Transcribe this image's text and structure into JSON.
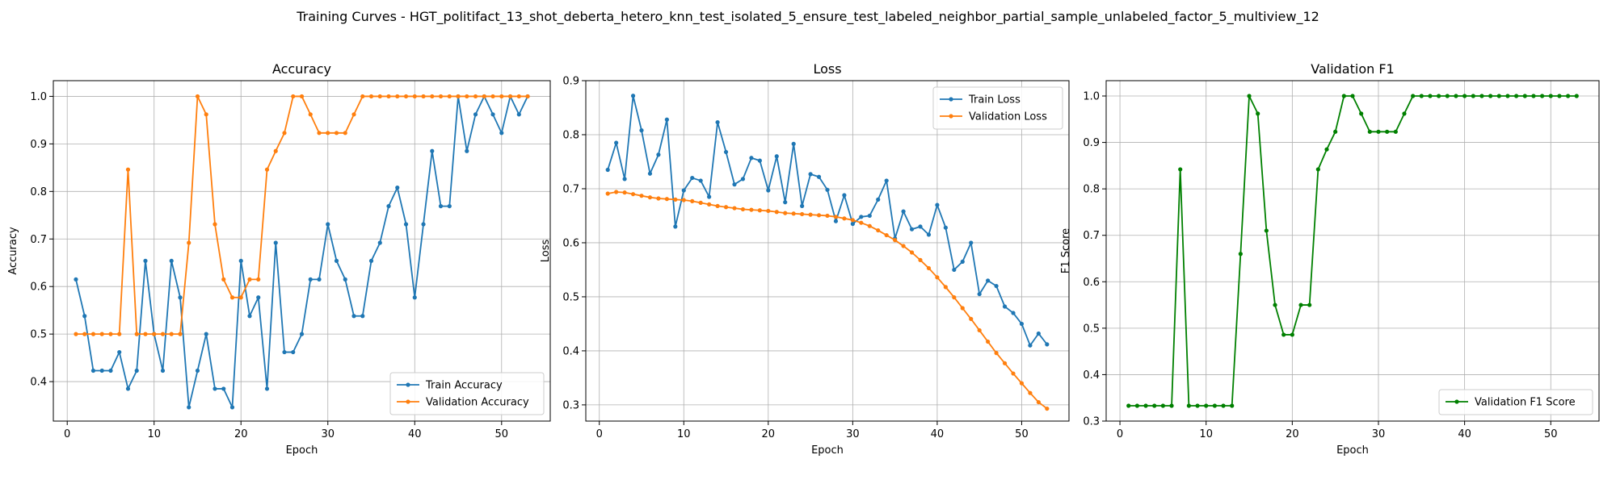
{
  "figure": {
    "suptitle": "Training Curves - HGT_politifact_13_shot_deberta_hetero_knn_test_isolated_5_ensure_test_labeled_neighbor_partial_sample_unlabeled_factor_5_multiview_12"
  },
  "colors": {
    "blue": "#1f77b4",
    "orange": "#ff7f0e",
    "green": "#008000",
    "grid": "#b0b0b0"
  },
  "chart_data": [
    {
      "type": "line",
      "title": "Accuracy",
      "xlabel": "Epoch",
      "ylabel": "Accuracy",
      "xlim": [
        -1.6,
        55.6
      ],
      "ylim": [
        0.317,
        1.033
      ],
      "xticks": [
        0,
        10,
        20,
        30,
        40,
        50
      ],
      "yticks": [
        0.4,
        0.5,
        0.6,
        0.7,
        0.8,
        0.9,
        1.0
      ],
      "ytick_labels": [
        "0.4",
        "0.5",
        "0.6",
        "0.7",
        "0.8",
        "0.9",
        "1.0"
      ],
      "grid": true,
      "legend_position": "lower-right",
      "x": [
        1,
        2,
        3,
        4,
        5,
        6,
        7,
        8,
        9,
        10,
        11,
        12,
        13,
        14,
        15,
        16,
        17,
        18,
        19,
        20,
        21,
        22,
        23,
        24,
        25,
        26,
        27,
        28,
        29,
        30,
        31,
        32,
        33,
        34,
        35,
        36,
        37,
        38,
        39,
        40,
        41,
        42,
        43,
        44,
        45,
        46,
        47,
        48,
        49,
        50,
        51,
        52,
        53
      ],
      "series": [
        {
          "name": "Train Accuracy",
          "color": "#1f77b4",
          "values": [
            0.615,
            0.538,
            0.423,
            0.423,
            0.423,
            0.462,
            0.385,
            0.423,
            0.654,
            0.5,
            0.423,
            0.654,
            0.577,
            0.346,
            0.423,
            0.5,
            0.385,
            0.385,
            0.346,
            0.654,
            0.538,
            0.577,
            0.385,
            0.692,
            0.462,
            0.462,
            0.5,
            0.615,
            0.615,
            0.731,
            0.654,
            0.615,
            0.538,
            0.538,
            0.654,
            0.692,
            0.769,
            0.808,
            0.731,
            0.577,
            0.731,
            0.885,
            0.769,
            0.769,
            1.0,
            0.885,
            0.962,
            1.0,
            0.962,
            0.923,
            1.0,
            0.962,
            1.0
          ]
        },
        {
          "name": "Validation Accuracy",
          "color": "#ff7f0e",
          "values": [
            0.5,
            0.5,
            0.5,
            0.5,
            0.5,
            0.5,
            0.846,
            0.5,
            0.5,
            0.5,
            0.5,
            0.5,
            0.5,
            0.692,
            1.0,
            0.962,
            0.731,
            0.615,
            0.577,
            0.577,
            0.615,
            0.615,
            0.846,
            0.885,
            0.923,
            1.0,
            1.0,
            0.962,
            0.923,
            0.923,
            0.923,
            0.923,
            0.962,
            1.0,
            1.0,
            1.0,
            1.0,
            1.0,
            1.0,
            1.0,
            1.0,
            1.0,
            1.0,
            1.0,
            1.0,
            1.0,
            1.0,
            1.0,
            1.0,
            1.0,
            1.0,
            1.0,
            1.0
          ]
        }
      ]
    },
    {
      "type": "line",
      "title": "Loss",
      "xlabel": "Epoch",
      "ylabel": "Loss",
      "xlim": [
        -1.6,
        55.6
      ],
      "ylim": [
        0.27,
        0.9
      ],
      "xticks": [
        0,
        10,
        20,
        30,
        40,
        50
      ],
      "yticks": [
        0.3,
        0.4,
        0.5,
        0.6,
        0.7,
        0.8,
        0.9
      ],
      "ytick_labels": [
        "0.3",
        "0.4",
        "0.5",
        "0.6",
        "0.7",
        "0.8",
        "0.9"
      ],
      "grid": true,
      "legend_position": "upper-right",
      "x": [
        1,
        2,
        3,
        4,
        5,
        6,
        7,
        8,
        9,
        10,
        11,
        12,
        13,
        14,
        15,
        16,
        17,
        18,
        19,
        20,
        21,
        22,
        23,
        24,
        25,
        26,
        27,
        28,
        29,
        30,
        31,
        32,
        33,
        34,
        35,
        36,
        37,
        38,
        39,
        40,
        41,
        42,
        43,
        44,
        45,
        46,
        47,
        48,
        49,
        50,
        51,
        52,
        53
      ],
      "series": [
        {
          "name": "Train Loss",
          "color": "#1f77b4",
          "values": [
            0.735,
            0.785,
            0.718,
            0.872,
            0.808,
            0.728,
            0.763,
            0.828,
            0.63,
            0.697,
            0.72,
            0.715,
            0.685,
            0.823,
            0.768,
            0.708,
            0.718,
            0.757,
            0.752,
            0.697,
            0.76,
            0.675,
            0.783,
            0.668,
            0.727,
            0.722,
            0.698,
            0.64,
            0.688,
            0.635,
            0.648,
            0.65,
            0.68,
            0.715,
            0.608,
            0.658,
            0.625,
            0.63,
            0.615,
            0.67,
            0.628,
            0.55,
            0.565,
            0.6,
            0.505,
            0.53,
            0.52,
            0.482,
            0.47,
            0.45,
            0.41,
            0.432,
            0.412
          ]
        },
        {
          "name": "Validation Loss",
          "color": "#ff7f0e",
          "values": [
            0.691,
            0.694,
            0.693,
            0.69,
            0.687,
            0.684,
            0.682,
            0.681,
            0.68,
            0.679,
            0.677,
            0.674,
            0.671,
            0.668,
            0.666,
            0.664,
            0.662,
            0.661,
            0.66,
            0.659,
            0.657,
            0.655,
            0.654,
            0.653,
            0.652,
            0.651,
            0.65,
            0.648,
            0.645,
            0.642,
            0.637,
            0.631,
            0.623,
            0.614,
            0.605,
            0.594,
            0.582,
            0.568,
            0.553,
            0.536,
            0.518,
            0.499,
            0.479,
            0.459,
            0.438,
            0.417,
            0.396,
            0.377,
            0.358,
            0.34,
            0.322,
            0.305,
            0.293
          ]
        }
      ]
    },
    {
      "type": "line",
      "title": "Validation F1",
      "xlabel": "Epoch",
      "ylabel": "F1 Score",
      "xlim": [
        -1.6,
        55.6
      ],
      "ylim": [
        0.3,
        1.033
      ],
      "xticks": [
        0,
        10,
        20,
        30,
        40,
        50
      ],
      "yticks": [
        0.3,
        0.4,
        0.5,
        0.6,
        0.7,
        0.8,
        0.9,
        1.0
      ],
      "ytick_labels": [
        "0.3",
        "0.4",
        "0.5",
        "0.6",
        "0.7",
        "0.8",
        "0.9",
        "1.0"
      ],
      "grid": true,
      "legend_position": "lower-right",
      "x": [
        1,
        2,
        3,
        4,
        5,
        6,
        7,
        8,
        9,
        10,
        11,
        12,
        13,
        14,
        15,
        16,
        17,
        18,
        19,
        20,
        21,
        22,
        23,
        24,
        25,
        26,
        27,
        28,
        29,
        30,
        31,
        32,
        33,
        34,
        35,
        36,
        37,
        38,
        39,
        40,
        41,
        42,
        43,
        44,
        45,
        46,
        47,
        48,
        49,
        50,
        51,
        52,
        53
      ],
      "series": [
        {
          "name": "Validation F1 Score",
          "color": "#008000",
          "values": [
            0.333,
            0.333,
            0.333,
            0.333,
            0.333,
            0.333,
            0.842,
            0.333,
            0.333,
            0.333,
            0.333,
            0.333,
            0.333,
            0.66,
            1.0,
            0.962,
            0.71,
            0.55,
            0.486,
            0.486,
            0.55,
            0.55,
            0.842,
            0.885,
            0.923,
            1.0,
            1.0,
            0.962,
            0.923,
            0.923,
            0.923,
            0.923,
            0.962,
            1.0,
            1.0,
            1.0,
            1.0,
            1.0,
            1.0,
            1.0,
            1.0,
            1.0,
            1.0,
            1.0,
            1.0,
            1.0,
            1.0,
            1.0,
            1.0,
            1.0,
            1.0,
            1.0,
            1.0
          ]
        }
      ]
    }
  ]
}
